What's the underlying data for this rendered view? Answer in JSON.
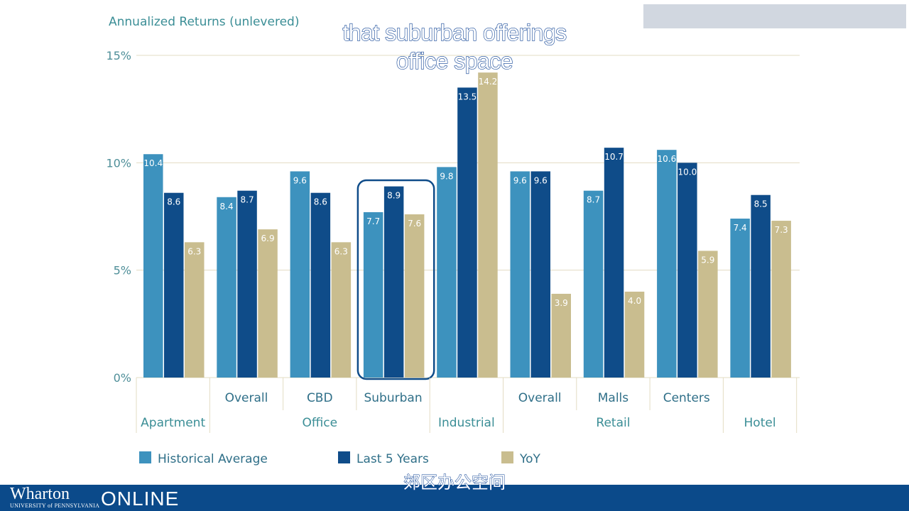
{
  "captions": {
    "line1": "that suburban offerings",
    "line2": "office space",
    "chinese": "郊区办公空间"
  },
  "branding": {
    "logo_word": "Wharton",
    "logo_sub": "UNIVERSITY of PENNSYLVANIA",
    "logo_online": "ONLINE"
  },
  "colors": {
    "historical": "#3d92be",
    "last5": "#0f4c89",
    "yoy": "#c9bd8f",
    "highlight_box": "#0f4c89",
    "footer": "#0b4a8a"
  },
  "chart_data": {
    "type": "bar",
    "title": "Annualized Returns (unlevered)",
    "xlabel": "",
    "ylabel": "",
    "ylim": [
      0,
      15
    ],
    "yticks": [
      "0%",
      "5%",
      "10%",
      "15%"
    ],
    "grid": true,
    "legend_position": "bottom",
    "categories": [
      "",
      "Overall",
      "CBD",
      "Suburban",
      "",
      "Overall",
      "Malls",
      "Centers",
      ""
    ],
    "groups": [
      {
        "label": "Apartment",
        "span": 1
      },
      {
        "label": "Office",
        "span": 3
      },
      {
        "label": "Industrial",
        "span": 1
      },
      {
        "label": "Retail",
        "span": 3
      },
      {
        "label": "Hotel",
        "span": 1
      }
    ],
    "highlighted_category_index": 3,
    "series": [
      {
        "name": "Historical Average",
        "values": [
          10.4,
          8.4,
          9.6,
          7.7,
          9.8,
          9.6,
          8.7,
          10.6,
          7.4
        ]
      },
      {
        "name": "Last 5 Years",
        "values": [
          8.6,
          8.7,
          8.6,
          8.9,
          13.5,
          9.6,
          10.7,
          10.0,
          8.5
        ]
      },
      {
        "name": "YoY",
        "values": [
          6.3,
          6.9,
          6.3,
          7.6,
          14.2,
          3.9,
          4.0,
          5.9,
          7.3
        ]
      }
    ]
  }
}
